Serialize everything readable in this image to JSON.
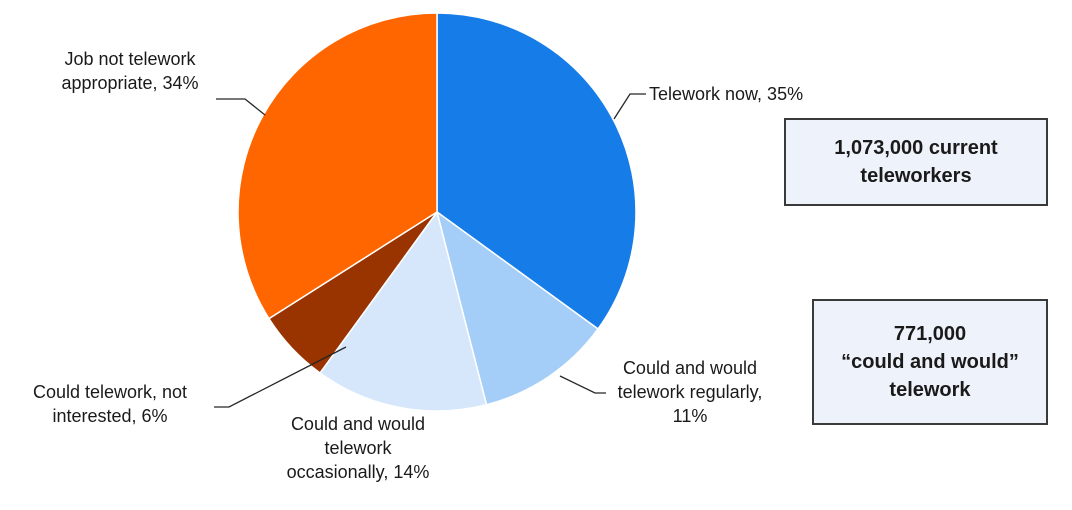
{
  "chart_data": {
    "type": "pie",
    "slices": [
      {
        "label": [
          "Telework now, 35%"
        ],
        "value": 35,
        "color": "#157ce8"
      },
      {
        "label": [
          "Could and would",
          "telework regularly,",
          "11%"
        ],
        "value": 11,
        "color": "#a4cdf7"
      },
      {
        "label": [
          "Could and would",
          "telework",
          "occasionally, 14%"
        ],
        "value": 14,
        "color": "#d6e7fb"
      },
      {
        "label": [
          "Could telework, not",
          "interested, 6%"
        ],
        "value": 6,
        "color": "#993300"
      },
      {
        "label": [
          "Job not telework",
          "appropriate, 34%"
        ],
        "value": 34,
        "color": "#ff6600"
      }
    ]
  },
  "callouts": [
    {
      "text": "1,073,000 current\nteleworkers"
    },
    {
      "text": "771,000\n“could and would”\ntelework"
    }
  ]
}
